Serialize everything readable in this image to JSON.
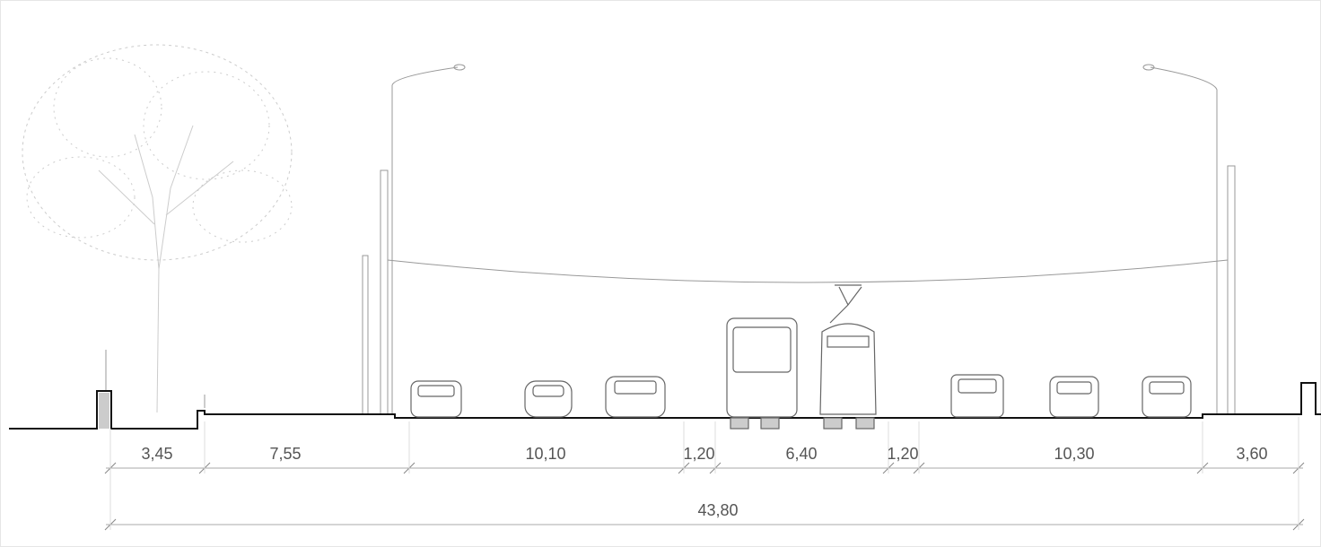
{
  "dimensions": [
    "3,45",
    "7,55",
    "10,10",
    "1,20",
    "6,40",
    "1,20",
    "10,30",
    "3,60"
  ],
  "total": "43,80"
}
